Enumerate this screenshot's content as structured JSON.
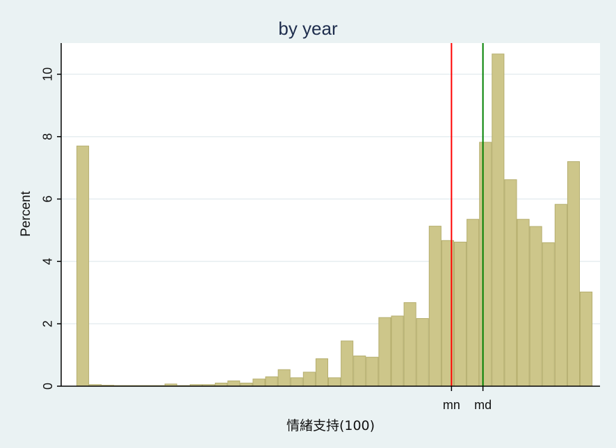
{
  "chart_data": {
    "type": "bar",
    "title": "by year",
    "xlabel": "情緒支持(100)",
    "ylabel": "Percent",
    "ylim": [
      0,
      11
    ],
    "yticks": [
      "0",
      "2",
      "4",
      "6",
      "8",
      "10"
    ],
    "grid": true,
    "legend": "none",
    "bar_color": "#cdc68a",
    "bar_edge_color": "#b5ae6e",
    "values": [
      7.7,
      0.05,
      0.03,
      0.02,
      0.02,
      0.02,
      0.02,
      0.07,
      0.02,
      0.05,
      0.05,
      0.1,
      0.17,
      0.1,
      0.23,
      0.3,
      0.53,
      0.27,
      0.45,
      0.88,
      0.27,
      1.45,
      0.97,
      0.93,
      2.2,
      2.25,
      2.68,
      2.17,
      5.13,
      4.67,
      4.62,
      5.35,
      7.82,
      10.65,
      6.62,
      5.35,
      5.12,
      4.6,
      5.83,
      7.2,
      3.02
    ],
    "markers": [
      {
        "label": "mn",
        "bin_position": 29.8,
        "color": "#ff0000"
      },
      {
        "label": "md",
        "bin_position": 32.3,
        "color": "#008000"
      }
    ]
  }
}
